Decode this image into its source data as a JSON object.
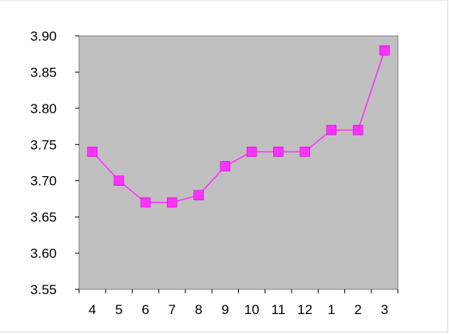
{
  "chart_data": {
    "type": "line",
    "title": "",
    "xlabel": "",
    "ylabel": "",
    "categories": [
      "4",
      "5",
      "6",
      "7",
      "8",
      "9",
      "10",
      "11",
      "12",
      "1",
      "2",
      "3"
    ],
    "series": [
      {
        "values": [
          3.74,
          3.7,
          3.67,
          3.67,
          3.68,
          3.72,
          3.74,
          3.74,
          3.74,
          3.77,
          3.77,
          3.88
        ],
        "color": "#ff33ff",
        "marker": "square"
      }
    ],
    "ylim": [
      3.55,
      3.9
    ],
    "yticks": [
      "3.55",
      "3.60",
      "3.65",
      "3.70",
      "3.75",
      "3.80",
      "3.85",
      "3.90"
    ],
    "plot_background": "#c0c0c0",
    "grid": false,
    "legend": "none"
  }
}
